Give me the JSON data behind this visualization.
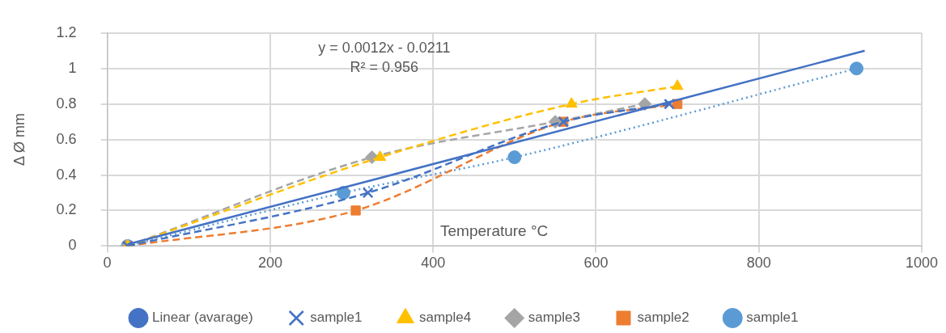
{
  "chart_data": {
    "type": "line",
    "xlabel": "Temperature °C",
    "ylabel": "Δ Ø mm",
    "annotations": [
      "y = 0.0012x - 0.0211",
      "R² = 0.956"
    ],
    "xlim": [
      0,
      1000
    ],
    "xticks": [
      0,
      200,
      400,
      600,
      800,
      1000
    ],
    "ylim": [
      0,
      1.2
    ],
    "yticks": [
      0,
      0.2,
      0.4,
      0.6,
      0.8,
      1,
      1.2
    ],
    "grid": true,
    "legend": "bottom",
    "series": [
      {
        "name": "sample1",
        "color": "#5b9bd5",
        "x": [
          25,
          290,
          500,
          920
        ],
        "values": [
          0,
          0.3,
          0.5,
          1.0
        ],
        "marker": "circle",
        "line_style": "dotted"
      },
      {
        "name": "sample2",
        "color": "#ed7d31",
        "x": [
          25,
          305,
          560,
          700
        ],
        "values": [
          0,
          0.2,
          0.7,
          0.8
        ],
        "marker": "square",
        "line_style": "dashed"
      },
      {
        "name": "sample3",
        "color": "#a5a5a5",
        "x": [
          25,
          325,
          550,
          660
        ],
        "values": [
          0,
          0.5,
          0.7,
          0.8
        ],
        "marker": "diamond",
        "line_style": "dashed"
      },
      {
        "name": "sample4",
        "color": "#ffc000",
        "x": [
          25,
          335,
          570,
          700
        ],
        "values": [
          0,
          0.5,
          0.8,
          0.9
        ],
        "marker": "triangle",
        "line_style": "dashed"
      },
      {
        "name": "sample1",
        "color": "#4472c4",
        "x": [
          25,
          320,
          560,
          690
        ],
        "values": [
          0,
          0.3,
          0.7,
          0.8
        ],
        "marker": "cross",
        "line_style": "dashed"
      },
      {
        "name": "Linear (avarage)",
        "color": "#4472c4",
        "x": [
          25,
          930
        ],
        "values": [
          0.01,
          1.1
        ],
        "marker": "none",
        "line_style": "solid"
      }
    ]
  }
}
